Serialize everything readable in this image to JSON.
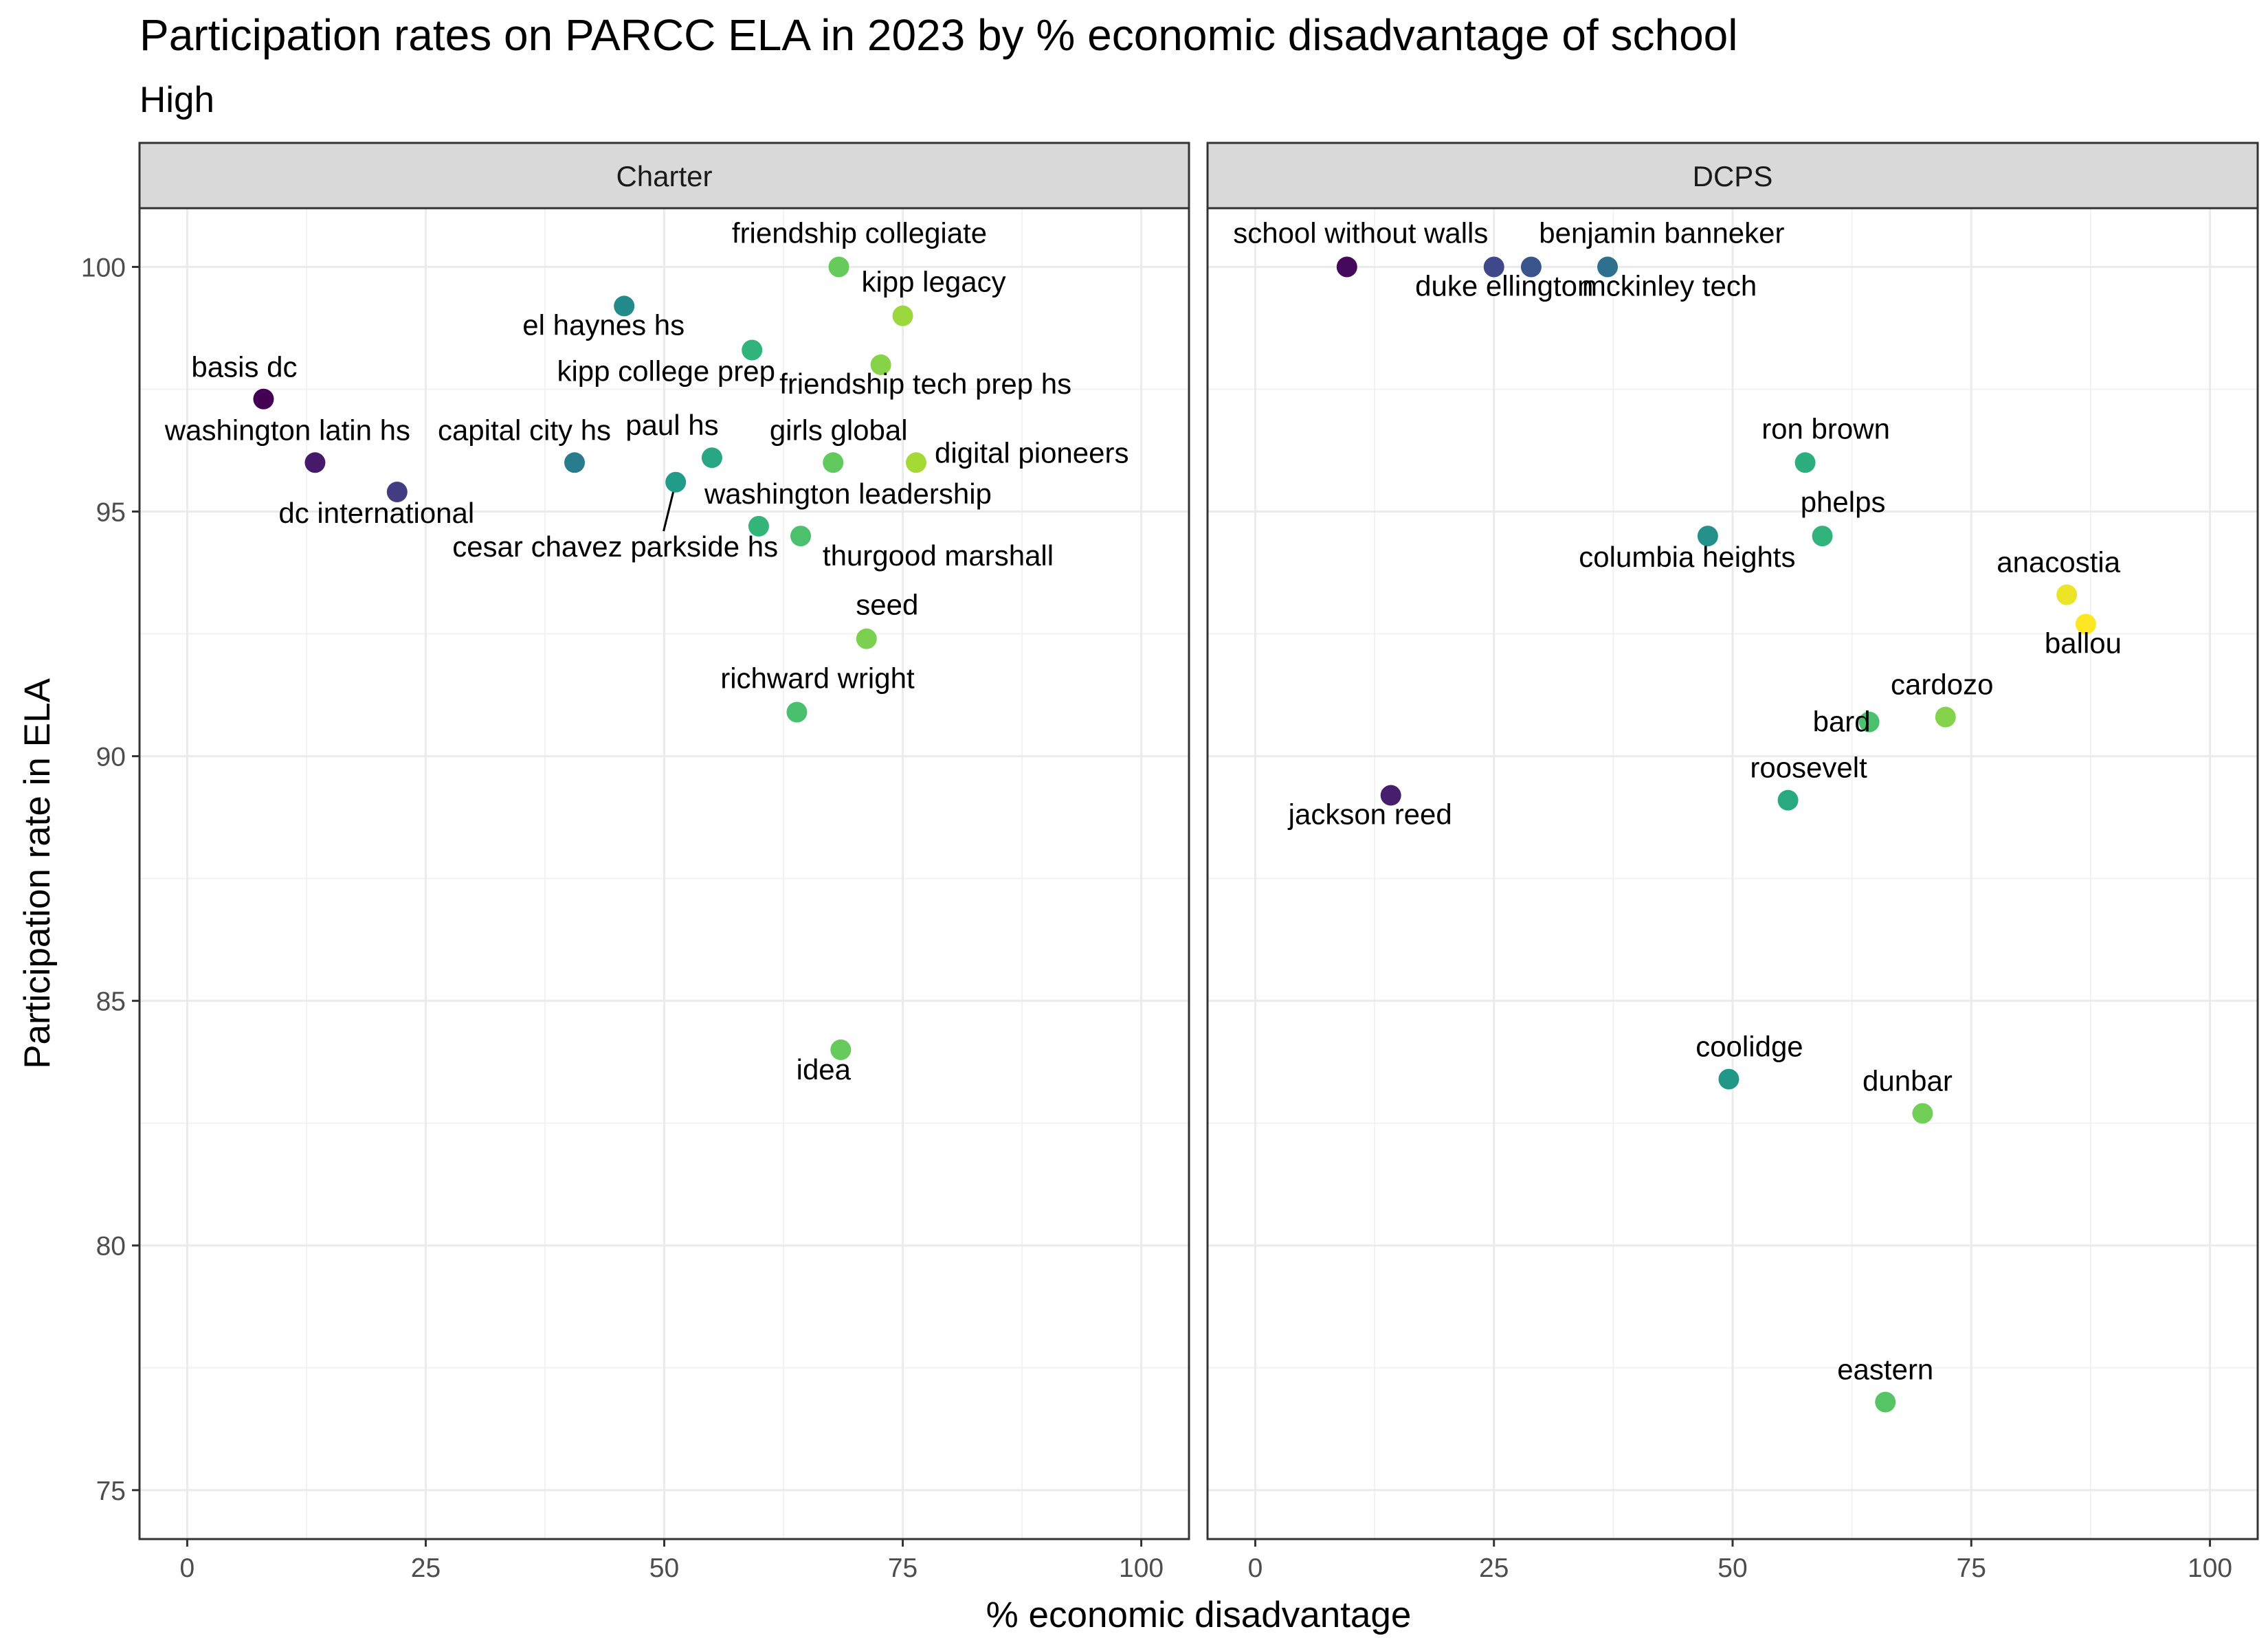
{
  "title": "Participation rates on PARCC ELA in 2023 by % economic disadvantage of school",
  "subtitle": "High",
  "chart_data": {
    "type": "scatter",
    "title": "Participation rates on PARCC ELA in 2023 by % economic disadvantage of school",
    "subtitle": "High",
    "xlabel": "% economic disadvantage",
    "ylabel": "Participation rate in ELA",
    "xlim": [
      -5,
      105
    ],
    "ylim": [
      74,
      101.2
    ],
    "x_ticks": [
      "0",
      "25",
      "50",
      "75",
      "100"
    ],
    "y_ticks": [
      "75",
      "80",
      "85",
      "90",
      "95",
      "100"
    ],
    "grid": true,
    "color_scale": "viridis by % economic disadvantage",
    "legend": "none",
    "facets": [
      {
        "name": "Charter",
        "points": [
          {
            "label": "friendship collegiate",
            "x": 68.3,
            "y": 100.0
          },
          {
            "label": "kipp legacy",
            "x": 75.0,
            "y": 99.0
          },
          {
            "label": "el haynes hs",
            "x": 45.8,
            "y": 99.2
          },
          {
            "label": "kipp college prep",
            "x": 59.2,
            "y": 98.3
          },
          {
            "label": "friendship tech prep hs",
            "x": 72.7,
            "y": 98.0
          },
          {
            "label": "basis dc",
            "x": 8.0,
            "y": 97.3
          },
          {
            "label": "washington latin hs",
            "x": 13.4,
            "y": 96.0
          },
          {
            "label": "capital city hs",
            "x": 40.6,
            "y": 96.0
          },
          {
            "label": "paul hs",
            "x": 55.0,
            "y": 96.1
          },
          {
            "label": "girls global",
            "x": 67.7,
            "y": 96.0
          },
          {
            "label": "digital pioneers",
            "x": 76.4,
            "y": 96.0
          },
          {
            "label": "dc international",
            "x": 22.0,
            "y": 95.4
          },
          {
            "label": "cesar chavez parkside hs",
            "x": 51.2,
            "y": 95.6
          },
          {
            "label": "washington leadership",
            "x": 59.9,
            "y": 94.7
          },
          {
            "label": "thurgood marshall",
            "x": 64.3,
            "y": 94.5
          },
          {
            "label": "seed",
            "x": 71.2,
            "y": 92.4
          },
          {
            "label": "richward wright",
            "x": 63.9,
            "y": 90.9
          },
          {
            "label": "idea",
            "x": 68.5,
            "y": 84.0
          }
        ]
      },
      {
        "name": "DCPS",
        "points": [
          {
            "label": "school without walls",
            "x": 9.6,
            "y": 100.0
          },
          {
            "label": "duke ellington",
            "x": 25.0,
            "y": 100.0
          },
          {
            "label": "benjamin banneker",
            "x": 28.9,
            "y": 100.0
          },
          {
            "label": "mckinley tech",
            "x": 36.9,
            "y": 100.0
          },
          {
            "label": "ron brown",
            "x": 57.6,
            "y": 96.0
          },
          {
            "label": "columbia heights",
            "x": 47.4,
            "y": 94.5
          },
          {
            "label": "phelps",
            "x": 59.4,
            "y": 94.5
          },
          {
            "label": "anacostia",
            "x": 85.0,
            "y": 93.3
          },
          {
            "label": "ballou",
            "x": 87.0,
            "y": 92.7
          },
          {
            "label": "cardozo",
            "x": 72.3,
            "y": 90.8
          },
          {
            "label": "bard",
            "x": 64.3,
            "y": 90.7
          },
          {
            "label": "roosevelt",
            "x": 55.8,
            "y": 89.1
          },
          {
            "label": "jackson reed",
            "x": 14.2,
            "y": 89.2
          },
          {
            "label": "coolidge",
            "x": 49.6,
            "y": 83.4
          },
          {
            "label": "dunbar",
            "x": 69.9,
            "y": 82.7
          },
          {
            "label": "eastern",
            "x": 66.0,
            "y": 76.8
          }
        ]
      }
    ]
  }
}
